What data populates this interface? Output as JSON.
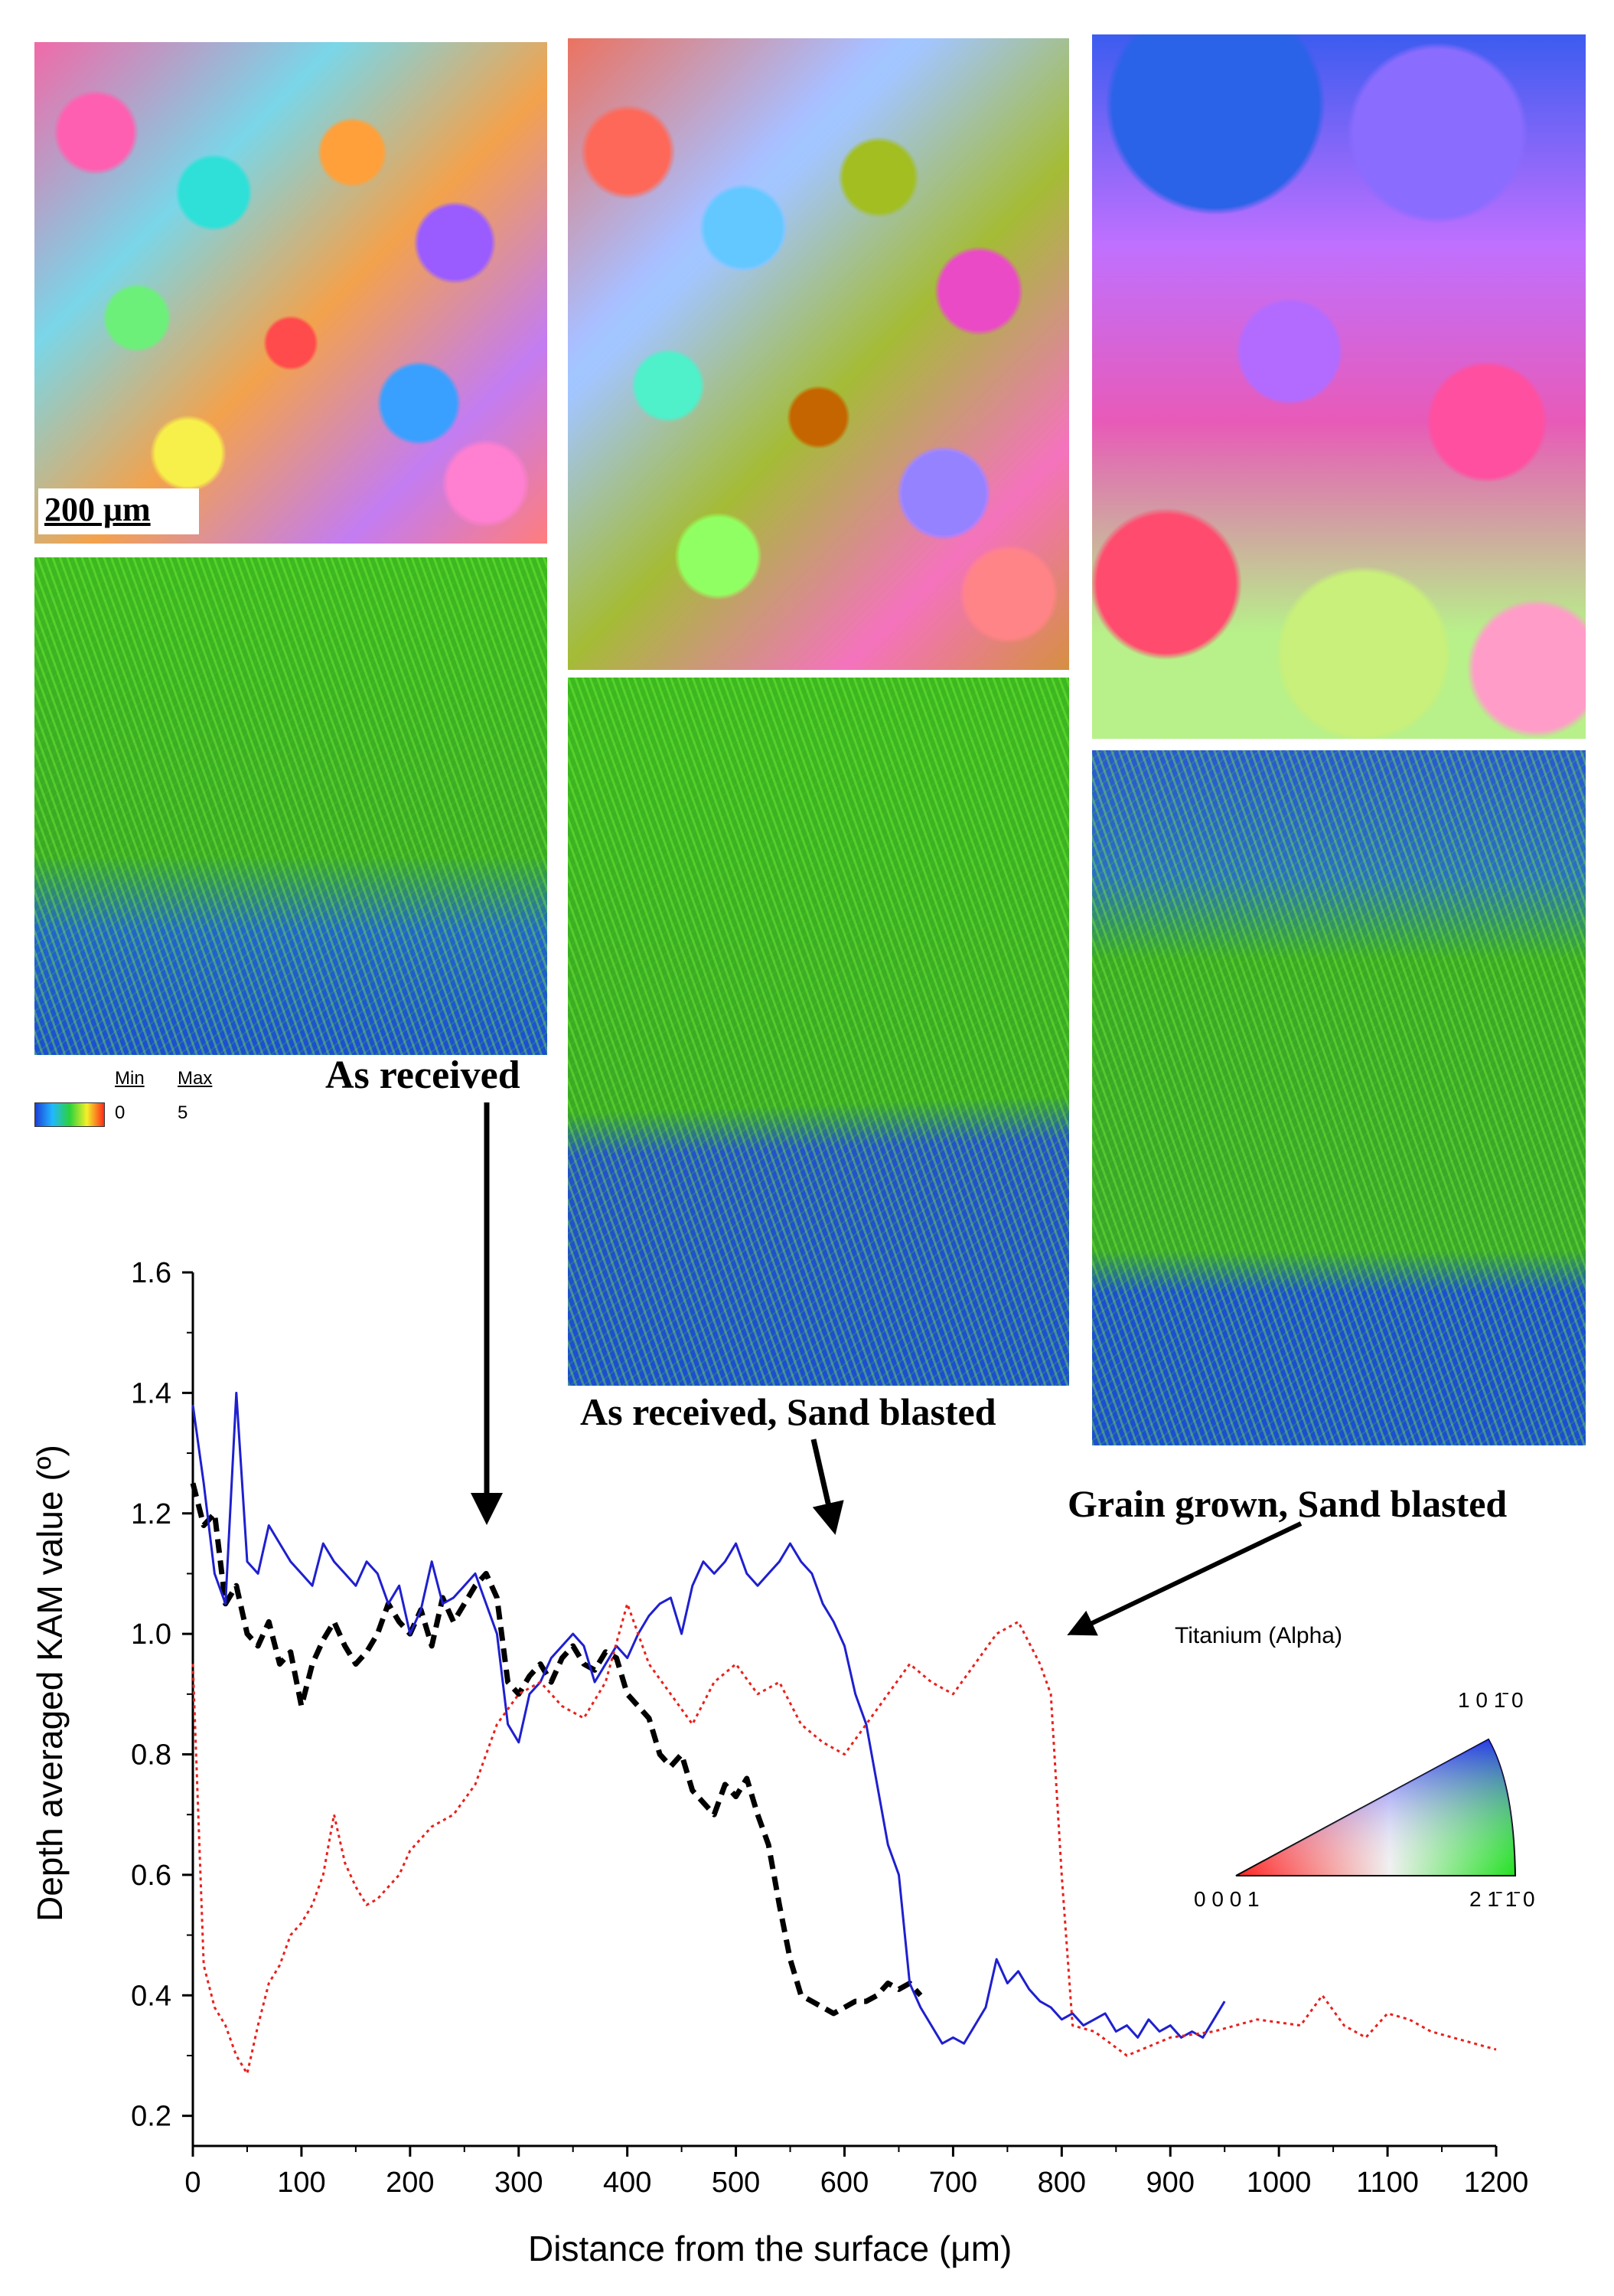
{
  "figure": {
    "scale_bar_label": "200 μm",
    "colorbar": {
      "min_label": "Min",
      "max_label": "Max",
      "min_value": "0",
      "max_value": "5"
    },
    "labels": {
      "as_received": "As received",
      "as_received_sand_blasted": "As received, Sand blasted",
      "grain_grown_sand_blasted": "Grain grown, Sand blasted"
    },
    "ipf_key": {
      "title": "Titanium (Alpha)",
      "corner_top": "1 0 1̄ 0",
      "corner_left": "0 0 0 1",
      "corner_right": "2 1̄ 1̄ 0"
    }
  },
  "chart_data": {
    "type": "line",
    "xlabel": "Distance from the surface (μm)",
    "ylabel": "Depth averaged KAM value (º)",
    "xlim": [
      0,
      1200
    ],
    "ylim": [
      0.15,
      1.6
    ],
    "xticks": [
      0,
      100,
      200,
      300,
      400,
      500,
      600,
      700,
      800,
      900,
      1000,
      1100,
      1200
    ],
    "yticks": [
      0.2,
      0.4,
      0.6,
      0.8,
      1.0,
      1.2,
      1.4,
      1.6
    ],
    "ytick_labels": [
      "0.2",
      "0.4",
      "0.6",
      "0.8",
      "1.0",
      "1.2",
      "1.4",
      "1.6"
    ],
    "series": [
      {
        "color": "#000000",
        "style": "dashed",
        "x": [
          0,
          10,
          20,
          30,
          40,
          50,
          60,
          70,
          80,
          90,
          100,
          110,
          120,
          130,
          140,
          150,
          160,
          170,
          180,
          190,
          200,
          210,
          220,
          230,
          240,
          250,
          260,
          270,
          280,
          290,
          300,
          310,
          320,
          330,
          340,
          350,
          360,
          370,
          380,
          390,
          400,
          410,
          420,
          430,
          440,
          450,
          460,
          470,
          480,
          490,
          500,
          510,
          520,
          530,
          540,
          550,
          560,
          570,
          580,
          590,
          600,
          610,
          620,
          630,
          640,
          650,
          660,
          670
        ],
        "y": [
          1.25,
          1.18,
          1.2,
          1.05,
          1.08,
          1.0,
          0.98,
          1.02,
          0.95,
          0.97,
          0.88,
          0.95,
          0.99,
          1.02,
          0.98,
          0.95,
          0.97,
          1.0,
          1.05,
          1.02,
          1.0,
          1.04,
          0.98,
          1.06,
          1.02,
          1.05,
          1.08,
          1.1,
          1.06,
          0.92,
          0.9,
          0.93,
          0.95,
          0.92,
          0.96,
          0.98,
          0.95,
          0.94,
          0.97,
          0.96,
          0.9,
          0.88,
          0.86,
          0.8,
          0.78,
          0.8,
          0.74,
          0.72,
          0.7,
          0.75,
          0.73,
          0.76,
          0.7,
          0.65,
          0.55,
          0.46,
          0.4,
          0.39,
          0.38,
          0.37,
          0.38,
          0.39,
          0.39,
          0.4,
          0.42,
          0.41,
          0.42,
          0.4
        ]
      },
      {
        "color": "#1f1fd0",
        "style": "solid",
        "x": [
          0,
          10,
          20,
          30,
          40,
          50,
          60,
          70,
          80,
          90,
          100,
          110,
          120,
          130,
          140,
          150,
          160,
          170,
          180,
          190,
          200,
          210,
          220,
          230,
          240,
          250,
          260,
          270,
          280,
          290,
          300,
          310,
          320,
          330,
          340,
          350,
          360,
          370,
          380,
          390,
          400,
          410,
          420,
          430,
          440,
          450,
          460,
          470,
          480,
          490,
          500,
          510,
          520,
          530,
          540,
          550,
          560,
          570,
          580,
          590,
          600,
          610,
          620,
          630,
          640,
          650,
          660,
          670,
          680,
          690,
          700,
          710,
          720,
          730,
          740,
          750,
          760,
          770,
          780,
          790,
          800,
          810,
          820,
          830,
          840,
          850,
          860,
          870,
          880,
          890,
          900,
          910,
          920,
          930,
          940,
          950
        ],
        "y": [
          1.38,
          1.25,
          1.1,
          1.05,
          1.4,
          1.12,
          1.1,
          1.18,
          1.15,
          1.12,
          1.1,
          1.08,
          1.15,
          1.12,
          1.1,
          1.08,
          1.12,
          1.1,
          1.05,
          1.08,
          1.0,
          1.04,
          1.12,
          1.05,
          1.06,
          1.08,
          1.1,
          1.05,
          1.0,
          0.85,
          0.82,
          0.9,
          0.92,
          0.96,
          0.98,
          1.0,
          0.98,
          0.92,
          0.95,
          0.98,
          0.96,
          1.0,
          1.03,
          1.05,
          1.06,
          1.0,
          1.08,
          1.12,
          1.1,
          1.12,
          1.15,
          1.1,
          1.08,
          1.1,
          1.12,
          1.15,
          1.12,
          1.1,
          1.05,
          1.02,
          0.98,
          0.9,
          0.85,
          0.75,
          0.65,
          0.6,
          0.42,
          0.38,
          0.35,
          0.32,
          0.33,
          0.32,
          0.35,
          0.38,
          0.46,
          0.42,
          0.44,
          0.41,
          0.39,
          0.38,
          0.36,
          0.37,
          0.35,
          0.36,
          0.37,
          0.34,
          0.35,
          0.33,
          0.36,
          0.34,
          0.35,
          0.33,
          0.34,
          0.33,
          0.36,
          0.39
        ]
      },
      {
        "color": "#e8201c",
        "style": "dotted",
        "x": [
          0,
          10,
          20,
          30,
          40,
          50,
          60,
          70,
          80,
          90,
          100,
          110,
          120,
          130,
          140,
          150,
          160,
          170,
          180,
          190,
          200,
          220,
          240,
          260,
          280,
          300,
          320,
          340,
          360,
          380,
          400,
          420,
          440,
          460,
          480,
          500,
          520,
          540,
          560,
          580,
          600,
          620,
          640,
          660,
          680,
          700,
          720,
          740,
          760,
          780,
          790,
          800,
          810,
          830,
          860,
          900,
          940,
          980,
          1020,
          1040,
          1060,
          1080,
          1100,
          1120,
          1140,
          1160,
          1180,
          1200
        ],
        "y": [
          0.95,
          0.45,
          0.38,
          0.35,
          0.3,
          0.27,
          0.35,
          0.42,
          0.45,
          0.5,
          0.52,
          0.55,
          0.6,
          0.7,
          0.62,
          0.58,
          0.55,
          0.56,
          0.58,
          0.6,
          0.64,
          0.68,
          0.7,
          0.75,
          0.85,
          0.9,
          0.92,
          0.88,
          0.86,
          0.92,
          1.05,
          0.95,
          0.9,
          0.85,
          0.92,
          0.95,
          0.9,
          0.92,
          0.85,
          0.82,
          0.8,
          0.85,
          0.9,
          0.95,
          0.92,
          0.9,
          0.95,
          1.0,
          1.02,
          0.95,
          0.9,
          0.6,
          0.35,
          0.34,
          0.3,
          0.33,
          0.34,
          0.36,
          0.35,
          0.4,
          0.35,
          0.33,
          0.37,
          0.36,
          0.34,
          0.33,
          0.32,
          0.31
        ]
      }
    ],
    "legend": "none"
  }
}
